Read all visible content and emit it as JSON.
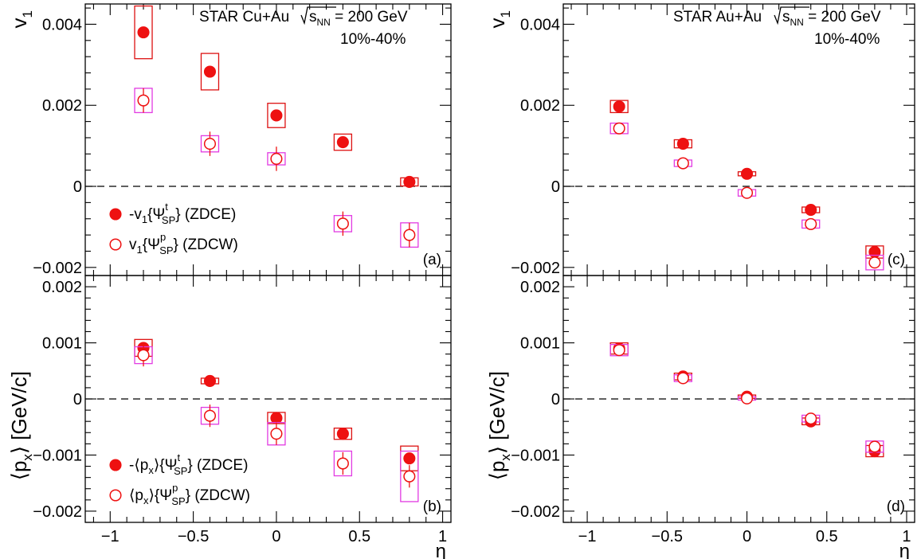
{
  "colors": {
    "filled": "#ee1111",
    "open": "#ee1111",
    "sys_filled": "#dd1111",
    "sys_open": "#e23be2",
    "axis": "#000000"
  },
  "chart_data": [
    {
      "id": "a",
      "type": "scatter",
      "panel_label": "(a)",
      "ylabel": "v",
      "ylabel_sub": "1",
      "xlim": [
        -1.15,
        1.05
      ],
      "ylim": [
        -0.0022,
        0.0045
      ],
      "yticks": [
        -0.002,
        0,
        0.002,
        0.004
      ],
      "yticklabels": [
        "−0.002",
        "0",
        "0.002",
        "0.004"
      ],
      "title_lines": [
        "STAR Cu+Au",
        "= 200 GeV",
        "10%-40%"
      ],
      "title_sqrt_s": "s",
      "title_sqrt_sub": "NN",
      "legend_position": "bottom-left",
      "series": [
        {
          "name": "-v1{ΨtSP} (ZDCE)",
          "legend_text": [
            "-v",
            "1",
            "{Ψ",
            "t",
            "SP",
            "} (ZDCE)"
          ],
          "marker": "filled",
          "x": [
            -0.8,
            -0.4,
            0,
            0.4,
            0.8
          ],
          "y": [
            0.0038,
            0.00283,
            0.00175,
            0.00109,
            0.00011
          ],
          "err": [
            0,
            0,
            0,
            0,
            0
          ],
          "sys": [
            0.00065,
            0.00045,
            0.0003,
            0.0002,
            0.0001
          ]
        },
        {
          "name": "v1{ΨpSP} (ZDCW)",
          "legend_text": [
            "v",
            "1",
            "{Ψ",
            "p",
            "SP",
            "} (ZDCW)"
          ],
          "marker": "open",
          "x": [
            -0.8,
            -0.4,
            0,
            0.4,
            0.8
          ],
          "y": [
            0.00212,
            0.00105,
            0.00068,
            -0.00092,
            -0.0012
          ],
          "err": [
            0.0003,
            0.0003,
            0.0003,
            0.0003,
            0.0003
          ],
          "sys": [
            0.0003,
            0.0002,
            0.00015,
            0.0002,
            0.0003
          ]
        }
      ]
    },
    {
      "id": "c",
      "type": "scatter",
      "panel_label": "(c)",
      "ylabel": "v",
      "ylabel_sub": "1",
      "xlim": [
        -1.15,
        1.05
      ],
      "ylim": [
        -0.0022,
        0.0045
      ],
      "yticks": [
        -0.002,
        0,
        0.002,
        0.004
      ],
      "yticklabels": [
        "−0.002",
        "0",
        "0.002",
        "0.004"
      ],
      "title_lines": [
        "STAR Au+Au",
        "= 200 GeV",
        "10%-40%"
      ],
      "title_sqrt_s": "s",
      "title_sqrt_sub": "NN",
      "series": [
        {
          "name": "-v1{ΨtSP} (ZDCE)",
          "marker": "filled",
          "x": [
            -0.8,
            -0.4,
            0,
            0.4,
            0.8
          ],
          "y": [
            0.00197,
            0.00105,
            0.00031,
            -0.00058,
            -0.00162
          ],
          "err": [
            0,
            0,
            0,
            0,
            0
          ],
          "sys": [
            0.00015,
            0.0001,
            5e-05,
            7e-05,
            0.00015
          ]
        },
        {
          "name": "v1{ΨpSP} (ZDCW)",
          "marker": "open",
          "x": [
            -0.8,
            -0.4,
            0,
            0.4,
            0.8
          ],
          "y": [
            0.00143,
            0.00057,
            -0.00016,
            -0.00093,
            -0.00188
          ],
          "err": [
            0,
            0,
            0,
            0,
            0
          ],
          "sys": [
            0.00013,
            8e-05,
            8e-05,
            0.0001,
            0.00018
          ]
        }
      ]
    },
    {
      "id": "b",
      "type": "scatter",
      "panel_label": "(b)",
      "ylabel": "⟨p",
      "ylabel_sub": "x",
      "ylabel_tail": "⟩ [GeV/c]",
      "xlim": [
        -1.15,
        1.05
      ],
      "ylim": [
        -0.0022,
        0.0022
      ],
      "yticks": [
        -0.002,
        -0.001,
        0,
        0.001,
        0.002
      ],
      "yticklabels": [
        "−0.002",
        "−0.001",
        "0",
        "0.001",
        "0.002"
      ],
      "xticks": [
        -1,
        -0.5,
        0,
        0.5,
        1
      ],
      "xticklabels": [
        "−1",
        "−0.5",
        "0",
        "0.5",
        "1"
      ],
      "xlabel": "η",
      "legend_position": "bottom-left",
      "series": [
        {
          "name": "-⟨px⟩{ΨtSP} (ZDCE)",
          "legend_text": [
            "-⟨p",
            "x",
            "⟩{Ψ",
            "t",
            "SP",
            "} (ZDCE)"
          ],
          "marker": "filled",
          "x": [
            -0.8,
            -0.4,
            0,
            0.4,
            0.8
          ],
          "y": [
            0.00091,
            0.00032,
            -0.00034,
            -0.00062,
            -0.00106
          ],
          "err": [
            0,
            0,
            0,
            0,
            0
          ],
          "sys": [
            0.00015,
            5e-05,
            0.0001,
            0.0001,
            0.00022
          ]
        },
        {
          "name": "⟨px⟩{ΨpSP} (ZDCW)",
          "legend_text": [
            "⟨p",
            "x",
            "⟩{Ψ",
            "p",
            "SP",
            "} (ZDCW)"
          ],
          "marker": "open",
          "x": [
            -0.8,
            -0.4,
            0,
            0.4,
            0.8
          ],
          "y": [
            0.00078,
            -0.0003,
            -0.00062,
            -0.00115,
            -0.00138
          ],
          "err": [
            0.0002,
            0.0002,
            0.0002,
            0.0002,
            0.0002
          ],
          "sys": [
            0.00015,
            0.00015,
            0.0002,
            0.00022,
            0.00045
          ]
        }
      ]
    },
    {
      "id": "d",
      "type": "scatter",
      "panel_label": "(d)",
      "ylabel": "⟨p",
      "ylabel_sub": "x",
      "ylabel_tail": "⟩ [GeV/c]",
      "xlim": [
        -1.15,
        1.05
      ],
      "ylim": [
        -0.0022,
        0.0022
      ],
      "yticks": [
        -0.002,
        -0.001,
        0,
        0.001,
        0.002
      ],
      "yticklabels": [
        "−0.002",
        "−0.001",
        "0",
        "0.001",
        "0.002"
      ],
      "xticks": [
        -1,
        -0.5,
        0,
        0.5,
        1
      ],
      "xticklabels": [
        "−1",
        "−0.5",
        "0",
        "0.5",
        "1"
      ],
      "xlabel": "η",
      "series": [
        {
          "name": "-⟨px⟩{ΨtSP} (ZDCE)",
          "marker": "filled",
          "x": [
            -0.8,
            -0.4,
            0,
            0.4,
            0.8
          ],
          "y": [
            0.0009,
            0.0004,
            4e-05,
            -0.0004,
            -0.00093
          ],
          "err": [
            0,
            0,
            0,
            0,
            0
          ],
          "sys": [
            0.0001,
            6e-05,
            3e-05,
            6e-05,
            0.0001
          ]
        },
        {
          "name": "⟨px⟩{ΨpSP} (ZDCW)",
          "marker": "open",
          "x": [
            -0.8,
            -0.4,
            0,
            0.4,
            0.8
          ],
          "y": [
            0.00087,
            0.00037,
            1e-05,
            -0.00035,
            -0.00085
          ],
          "err": [
            0,
            0,
            0,
            0,
            0
          ],
          "sys": [
            0.0001,
            6e-05,
            3e-05,
            6e-05,
            0.0001
          ]
        }
      ]
    }
  ]
}
